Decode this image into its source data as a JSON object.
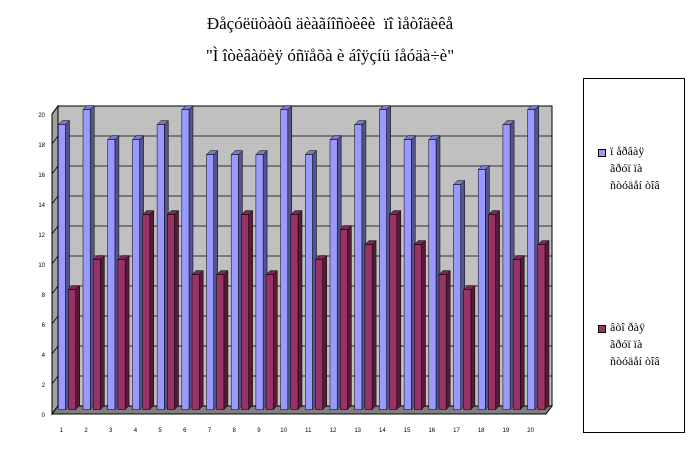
{
  "title_line1": "Ðåçóëüòàòû äèàãíîñòèêè  ïî ìåòîäèêå",
  "title_line2": "\"Ì îòèâàöèÿ óñïåõà è áîÿçíü íåóäà÷è\"",
  "colors": {
    "series1": "#9999ff",
    "series2": "#993366",
    "wall": "#c0c0c0"
  },
  "chart_data": {
    "type": "bar",
    "categories": [
      "1",
      "2",
      "3",
      "4",
      "5",
      "6",
      "7",
      "8",
      "9",
      "10",
      "11",
      "12",
      "13",
      "14",
      "15",
      "16",
      "17",
      "18",
      "19",
      "20"
    ],
    "series": [
      {
        "name": "ï åðâàÿ\nãðóï ïà\nñòóäåí òîâ",
        "values": [
          19,
          20,
          18,
          18,
          19,
          20,
          17,
          17,
          17,
          20,
          17,
          18,
          19,
          20,
          18,
          18,
          15,
          16,
          19,
          20
        ]
      },
      {
        "name": "âòî ðàÿ\nãðóï ïà\nñòóäåí òîâ",
        "values": [
          8,
          10,
          10,
          13,
          13,
          9,
          9,
          13,
          9,
          13,
          10,
          12,
          11,
          13,
          11,
          9,
          8,
          13,
          10,
          11
        ]
      }
    ],
    "yticks": [
      "0",
      "2",
      "4",
      "6",
      "8",
      "10",
      "12",
      "14",
      "16",
      "18",
      "20"
    ],
    "ylim": [
      0,
      20
    ],
    "grid": true,
    "legend_position": "right"
  }
}
